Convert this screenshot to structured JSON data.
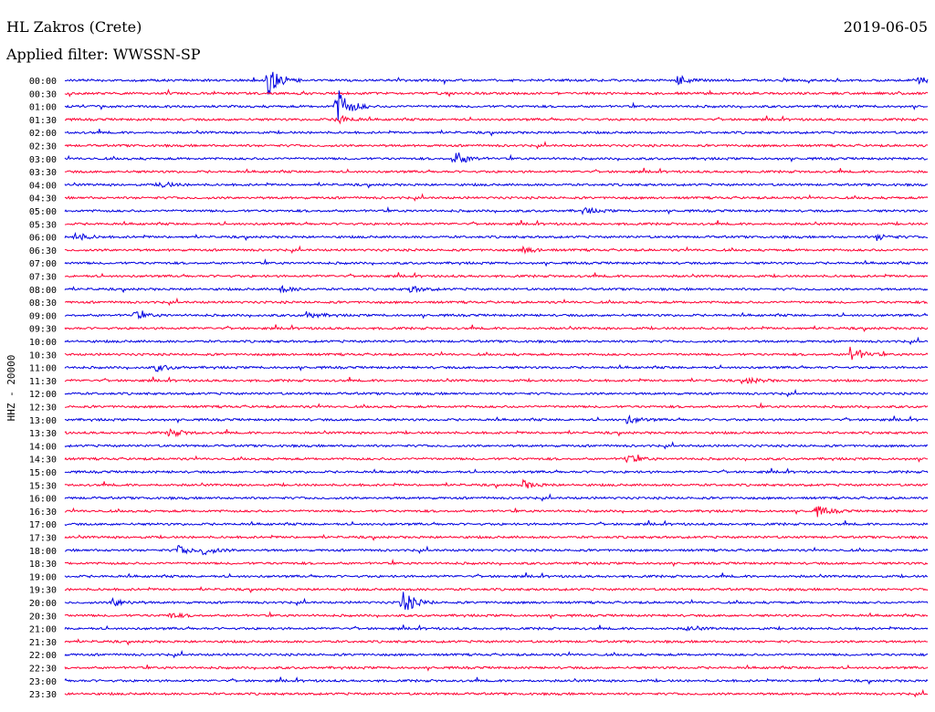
{
  "header": {
    "station": "HL Zakros (Crete)",
    "date": "2019-06-05",
    "filter_prefix": "Applied filter:",
    "filter_name": "WWSSN-SP"
  },
  "chart_data": {
    "type": "line",
    "title": "HL Zakros (Crete)",
    "date": "2019-06-05",
    "filter": "WWSSN-SP",
    "ylabel": "HHZ - 20000",
    "colors": {
      "even_rows": "#0000e0",
      "odd_rows": "#ff0033"
    },
    "rows": [
      "00:00",
      "00:30",
      "01:00",
      "01:30",
      "02:00",
      "02:30",
      "03:00",
      "03:30",
      "04:00",
      "04:30",
      "05:00",
      "05:30",
      "06:00",
      "06:30",
      "07:00",
      "07:30",
      "08:00",
      "08:30",
      "09:00",
      "09:30",
      "10:00",
      "10:30",
      "11:00",
      "11:30",
      "12:00",
      "12:30",
      "13:00",
      "13:30",
      "14:00",
      "14:30",
      "15:00",
      "15:30",
      "16:00",
      "16:30",
      "17:00",
      "17:30",
      "18:00",
      "18:30",
      "19:00",
      "19:30",
      "20:00",
      "20:30",
      "21:00",
      "21:30",
      "22:00",
      "22:30",
      "23:00",
      "23:30"
    ],
    "row_duration_min": 30,
    "events": [
      {
        "row": 0,
        "t": 0.235,
        "amp": 3.0
      },
      {
        "row": 0,
        "t": 0.71,
        "amp": 1.0
      },
      {
        "row": 0,
        "t": 0.985,
        "amp": 0.7
      },
      {
        "row": 2,
        "t": 0.314,
        "amp": 3.8
      },
      {
        "row": 3,
        "t": 0.314,
        "amp": 1.0
      },
      {
        "row": 6,
        "t": 0.45,
        "amp": 1.6
      },
      {
        "row": 8,
        "t": 0.11,
        "amp": 0.6
      },
      {
        "row": 10,
        "t": 0.6,
        "amp": 0.6
      },
      {
        "row": 12,
        "t": 0.01,
        "amp": 0.9
      },
      {
        "row": 12,
        "t": 0.94,
        "amp": 0.6
      },
      {
        "row": 13,
        "t": 0.53,
        "amp": 0.6
      },
      {
        "row": 16,
        "t": 0.25,
        "amp": 0.6
      },
      {
        "row": 16,
        "t": 0.4,
        "amp": 0.6
      },
      {
        "row": 18,
        "t": 0.08,
        "amp": 0.7
      },
      {
        "row": 18,
        "t": 0.28,
        "amp": 0.6
      },
      {
        "row": 21,
        "t": 0.91,
        "amp": 1.5
      },
      {
        "row": 22,
        "t": 0.105,
        "amp": 0.7
      },
      {
        "row": 23,
        "t": 0.79,
        "amp": 0.6
      },
      {
        "row": 26,
        "t": 0.65,
        "amp": 0.8
      },
      {
        "row": 27,
        "t": 0.12,
        "amp": 0.8
      },
      {
        "row": 29,
        "t": 0.65,
        "amp": 0.8
      },
      {
        "row": 31,
        "t": 0.53,
        "amp": 0.8
      },
      {
        "row": 33,
        "t": 0.87,
        "amp": 1.1
      },
      {
        "row": 36,
        "t": 0.13,
        "amp": 0.9
      },
      {
        "row": 36,
        "t": 0.16,
        "amp": 0.8
      },
      {
        "row": 40,
        "t": 0.39,
        "amp": 2.4
      },
      {
        "row": 40,
        "t": 0.055,
        "amp": 0.8
      },
      {
        "row": 41,
        "t": 0.12,
        "amp": 0.5
      },
      {
        "row": 42,
        "t": 0.72,
        "amp": 0.4
      }
    ]
  }
}
